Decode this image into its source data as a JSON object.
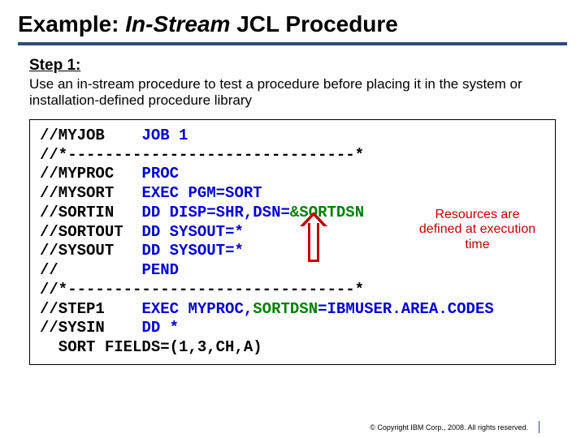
{
  "title": {
    "pre": "Example: ",
    "em": "In-Stream",
    "post": " JCL Procedure"
  },
  "rule_color": "#2b4a7a",
  "step": {
    "head": "Step 1:",
    "body": "Use an in-stream procedure to test a procedure before placing it in the system or installation-defined procedure library"
  },
  "code": {
    "l1": {
      "a": "//MYJOB",
      "b": "JOB 1"
    },
    "l2": {
      "a": "//*-------------------------------*"
    },
    "l3": {
      "a": "//MYPROC",
      "b": "PROC"
    },
    "l4": {
      "a": "//MYSORT",
      "b": "EXEC",
      "c": "PGM=SORT"
    },
    "l5": {
      "a": "//SORTIN",
      "b": "DD",
      "c": "DISP=SHR,DSN=",
      "d": "&SORTDSN"
    },
    "l6": {
      "a": "//SORTOUT",
      "b": "DD",
      "c": "SYSOUT=*"
    },
    "l7": {
      "a": "//SYSOUT",
      "b": "DD",
      "c": "SYSOUT=*"
    },
    "l8": {
      "a": "//",
      "b": "PEND"
    },
    "l9": {
      "a": "//*-------------------------------*"
    },
    "l10": {
      "a": "//STEP1",
      "b": "EXEC",
      "c": "MYPROC,",
      "d": "SORTDSN",
      "e": "=IBMUSER.AREA.CODES"
    },
    "l11": {
      "a": "//SYSIN",
      "b": "DD",
      "c": "*"
    },
    "l12": {
      "a": "  SORT FIELDS=(1,3,CH,A)"
    }
  },
  "callout": "Resources are defined at execution time",
  "arrow_color": "#c00000",
  "copyright": "© Copyright IBM Corp., 2008. All rights reserved."
}
